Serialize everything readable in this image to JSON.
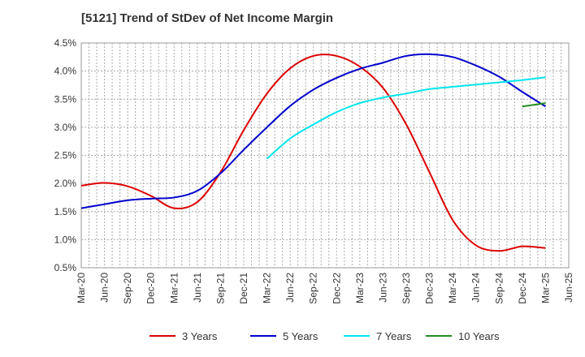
{
  "chart_data": {
    "type": "line",
    "title": "[5121]  Trend of StDev of Net Income Margin",
    "xlabel": "",
    "ylabel": "",
    "x_tick_labels": [
      "Mar-20",
      "Jun-20",
      "Sep-20",
      "Dec-20",
      "Mar-21",
      "Jun-21",
      "Sep-21",
      "Dec-21",
      "Mar-22",
      "Jun-22",
      "Sep-22",
      "Dec-22",
      "Mar-23",
      "Jun-23",
      "Sep-23",
      "Dec-23",
      "Mar-24",
      "Jun-24",
      "Sep-24",
      "Dec-24",
      "Mar-25",
      "Jun-25"
    ],
    "y_tick_labels": [
      "4.5%",
      "4.0%",
      "3.5%",
      "3.0%",
      "2.5%",
      "2.0%",
      "1.5%",
      "1.0%",
      "0.5%"
    ],
    "ylim": [
      0.5,
      4.5
    ],
    "grid": true,
    "legend_position": "bottom",
    "series": [
      {
        "name": "3 Years",
        "color": "#dd0000",
        "points": [
          [
            "Mar-20",
            1.96
          ],
          [
            "Jun-20",
            2.01
          ],
          [
            "Sep-20",
            1.95
          ],
          [
            "Dec-20",
            1.78
          ],
          [
            "Mar-21",
            1.56
          ],
          [
            "Jun-21",
            1.67
          ],
          [
            "Sep-21",
            2.2
          ],
          [
            "Dec-21",
            2.95
          ],
          [
            "Mar-22",
            3.6
          ],
          [
            "Jun-22",
            4.05
          ],
          [
            "Sep-22",
            4.27
          ],
          [
            "Dec-22",
            4.27
          ],
          [
            "Mar-23",
            4.08
          ],
          [
            "Jun-23",
            3.7
          ],
          [
            "Sep-23",
            3.05
          ],
          [
            "Dec-23",
            2.2
          ],
          [
            "Mar-24",
            1.35
          ],
          [
            "Jun-24",
            0.9
          ],
          [
            "Sep-24",
            0.8
          ],
          [
            "Dec-24",
            0.88
          ],
          [
            "Mar-25",
            0.85
          ]
        ]
      },
      {
        "name": "5 Years",
        "color": "#0000cc",
        "points": [
          [
            "Mar-20",
            1.56
          ],
          [
            "Jun-20",
            1.63
          ],
          [
            "Sep-20",
            1.7
          ],
          [
            "Dec-20",
            1.73
          ],
          [
            "Mar-21",
            1.75
          ],
          [
            "Jun-21",
            1.87
          ],
          [
            "Sep-21",
            2.18
          ],
          [
            "Dec-21",
            2.6
          ],
          [
            "Mar-22",
            3.0
          ],
          [
            "Jun-22",
            3.38
          ],
          [
            "Sep-22",
            3.67
          ],
          [
            "Dec-22",
            3.88
          ],
          [
            "Mar-23",
            4.04
          ],
          [
            "Jun-23",
            4.15
          ],
          [
            "Sep-23",
            4.27
          ],
          [
            "Dec-23",
            4.3
          ],
          [
            "Mar-24",
            4.25
          ],
          [
            "Jun-24",
            4.1
          ],
          [
            "Sep-24",
            3.9
          ],
          [
            "Dec-24",
            3.63
          ],
          [
            "Mar-25",
            3.37
          ]
        ]
      },
      {
        "name": "7 Years",
        "color": "#00e5ee",
        "points": [
          [
            "Mar-22",
            2.44
          ],
          [
            "Jun-22",
            2.8
          ],
          [
            "Sep-22",
            3.05
          ],
          [
            "Dec-22",
            3.27
          ],
          [
            "Mar-23",
            3.43
          ],
          [
            "Jun-23",
            3.53
          ],
          [
            "Sep-23",
            3.6
          ],
          [
            "Dec-23",
            3.68
          ],
          [
            "Mar-24",
            3.72
          ],
          [
            "Jun-24",
            3.76
          ],
          [
            "Sep-24",
            3.8
          ],
          [
            "Dec-24",
            3.84
          ],
          [
            "Mar-25",
            3.89
          ]
        ]
      },
      {
        "name": "10 Years",
        "color": "#228b22",
        "points": [
          [
            "Dec-24",
            3.37
          ],
          [
            "Mar-25",
            3.43
          ]
        ]
      }
    ]
  }
}
